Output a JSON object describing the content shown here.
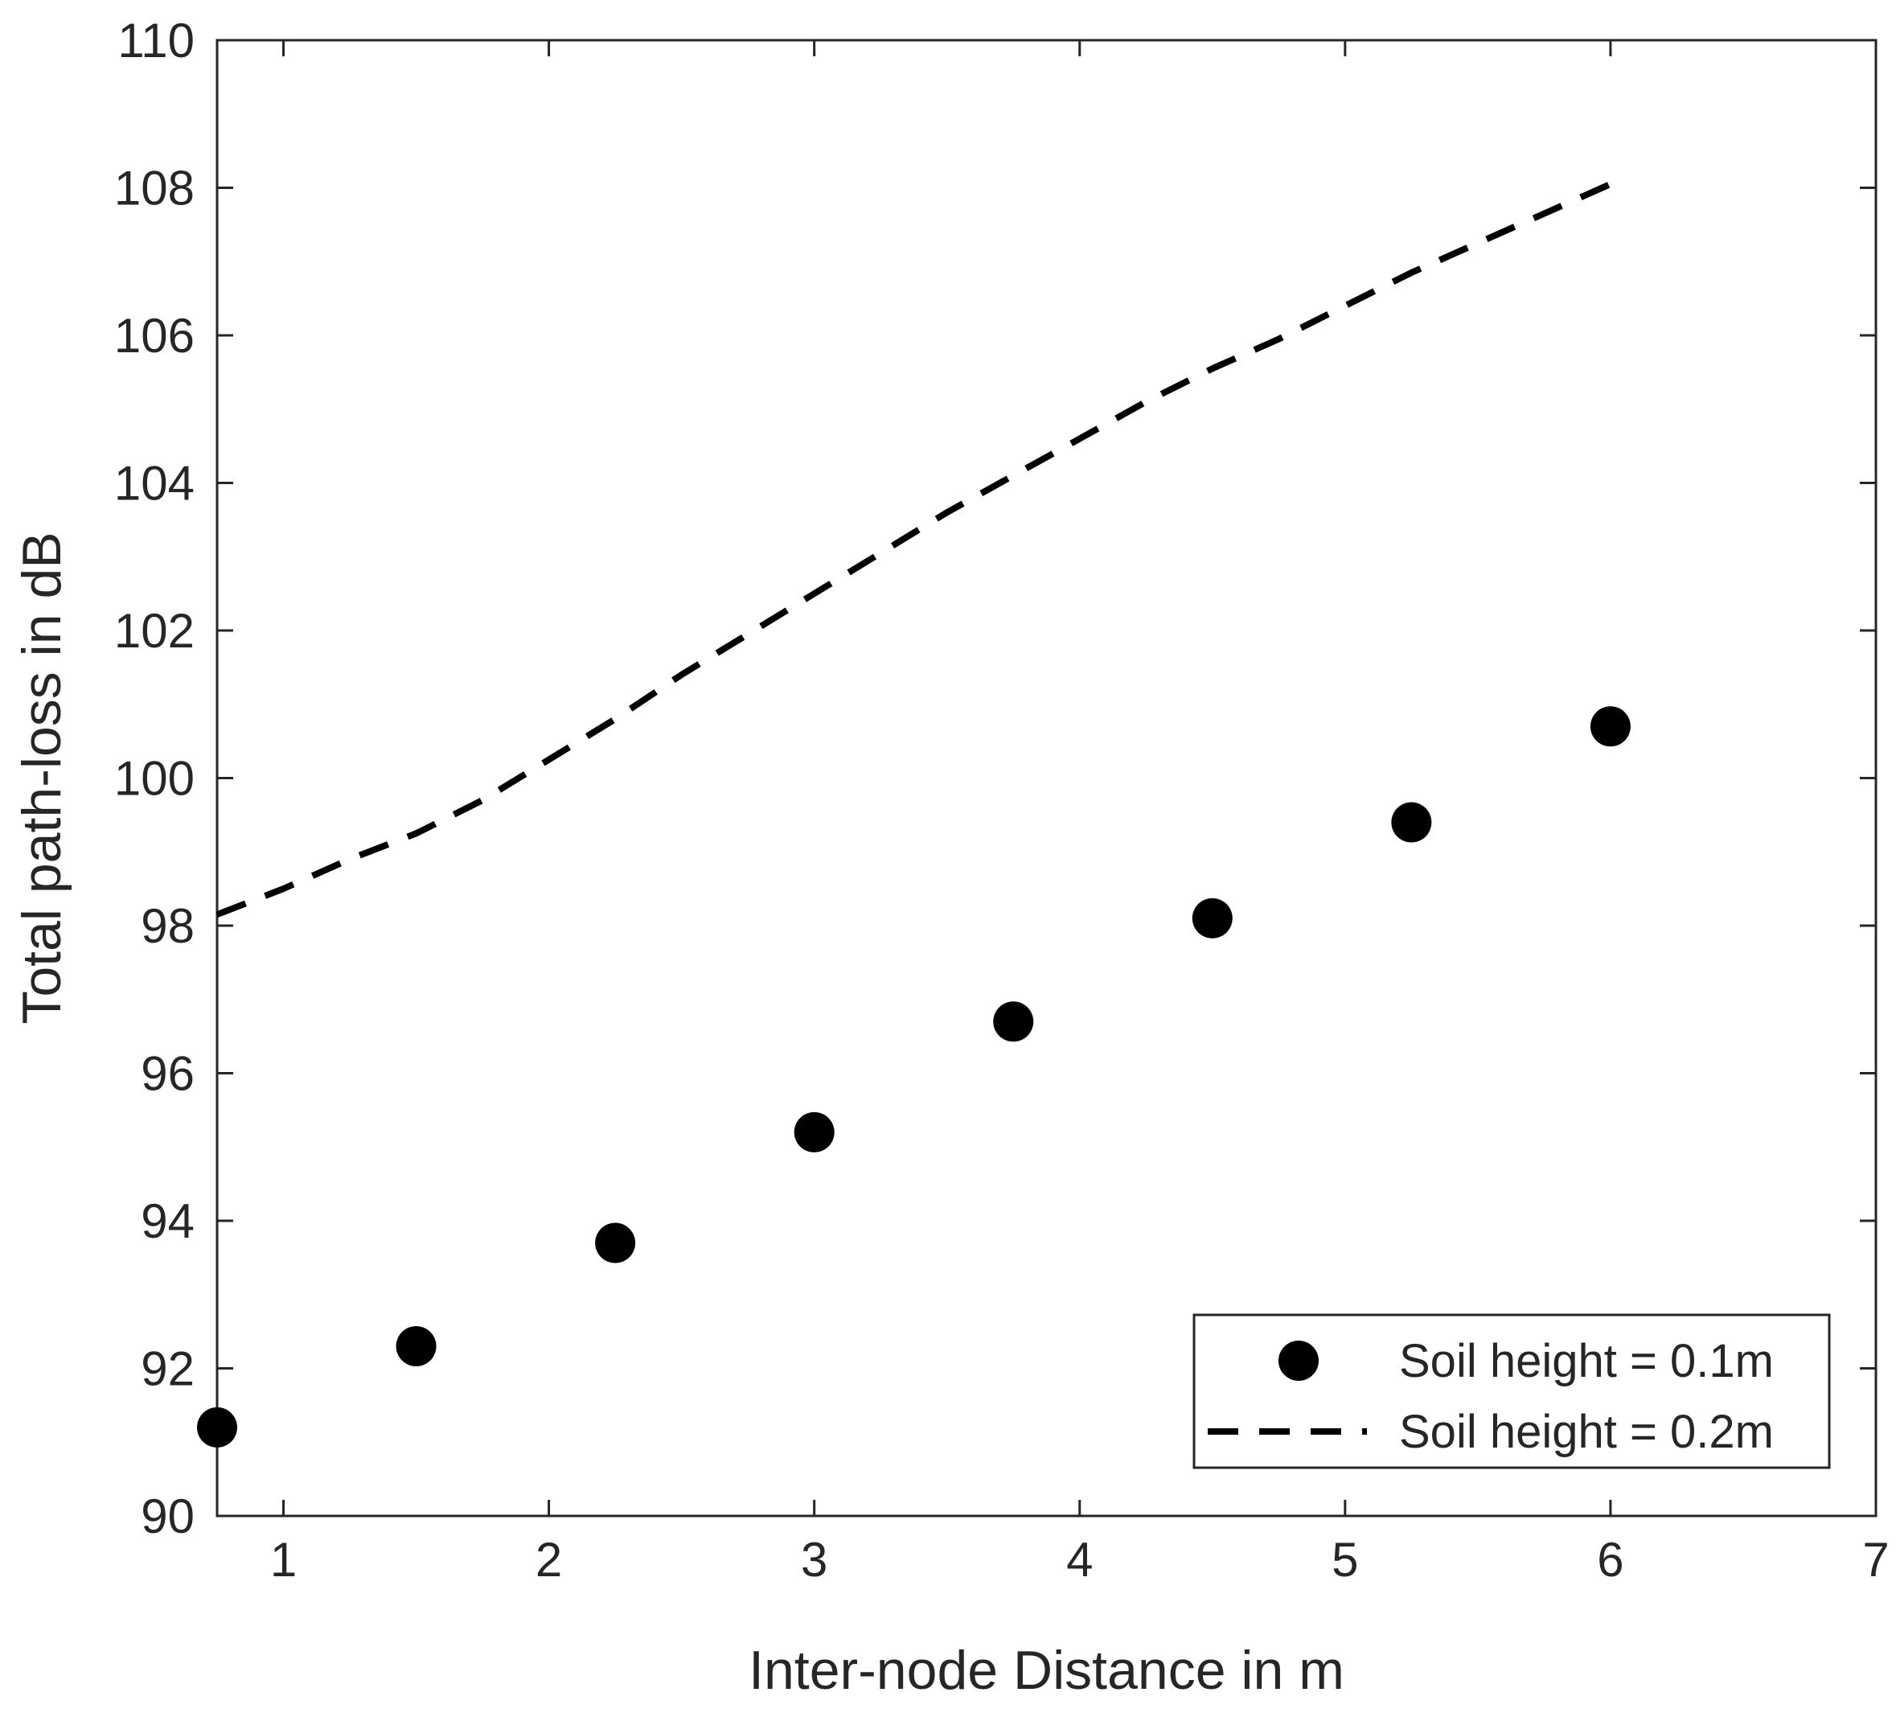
{
  "chart_data": {
    "type": "scatter",
    "title": "",
    "xlabel": "Inter-node Distance in m",
    "ylabel": "Total path-loss in dB",
    "xlim": [
      0.75,
      7
    ],
    "ylim": [
      90,
      110
    ],
    "xticks": [
      1,
      2,
      3,
      4,
      5,
      6,
      7
    ],
    "yticks": [
      90,
      92,
      94,
      96,
      98,
      100,
      102,
      104,
      106,
      108,
      110
    ],
    "grid": false,
    "legend_position": "bottom-right",
    "series": [
      {
        "name": "Soil height = 0.1m",
        "style": "markers",
        "color": "#000000",
        "x": [
          0.75,
          1.5,
          2.25,
          3.0,
          3.75,
          4.5,
          5.25,
          6.0
        ],
        "y": [
          91.2,
          92.3,
          93.7,
          95.2,
          96.7,
          98.1,
          99.4,
          100.7
        ]
      },
      {
        "name": "Soil height = 0.2m",
        "style": "dashed-line",
        "color": "#000000",
        "x": [
          0.75,
          1.0,
          1.25,
          1.5,
          1.75,
          2.0,
          2.25,
          2.5,
          2.75,
          3.0,
          3.25,
          3.5,
          3.75,
          4.0,
          4.25,
          4.5,
          4.75,
          5.0,
          5.25,
          5.5,
          5.75,
          6.0
        ],
        "y": [
          98.15,
          98.5,
          98.9,
          99.25,
          99.7,
          100.25,
          100.8,
          101.4,
          101.95,
          102.5,
          103.05,
          103.6,
          104.1,
          104.6,
          105.1,
          105.55,
          105.95,
          106.4,
          106.85,
          107.25,
          107.65,
          108.05
        ]
      }
    ]
  }
}
